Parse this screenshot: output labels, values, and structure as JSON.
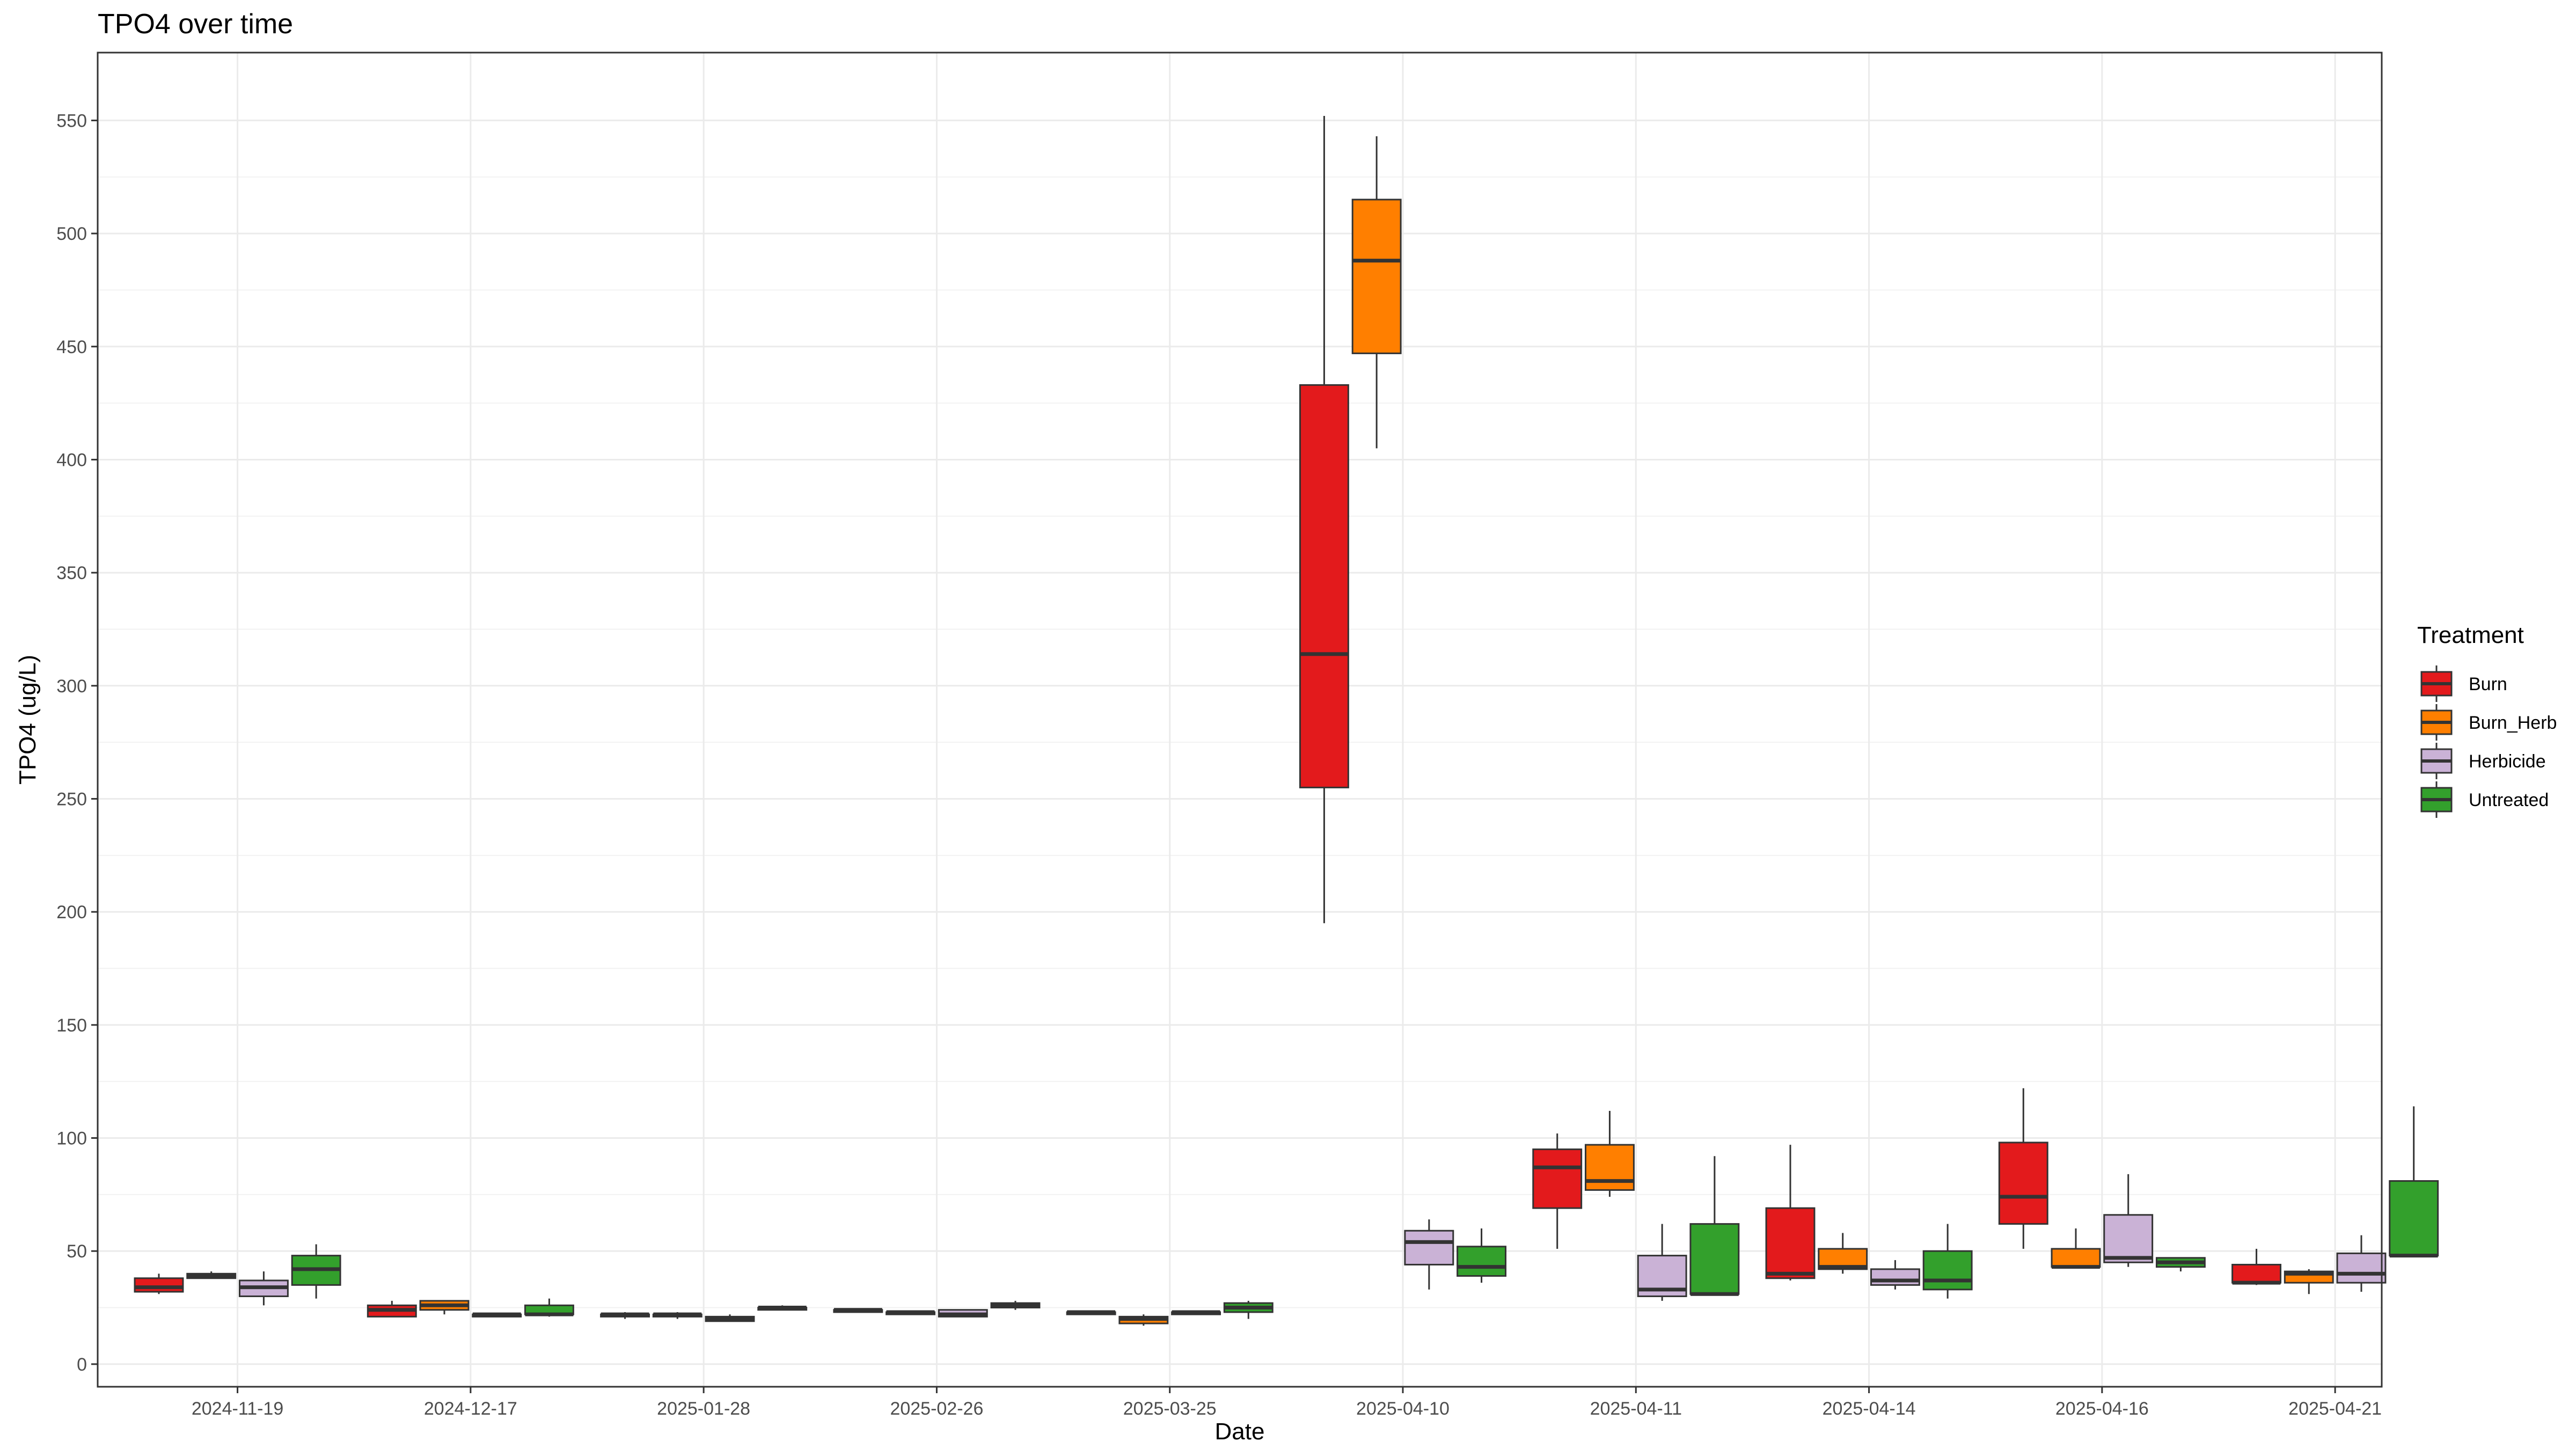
{
  "chart_data": {
    "type": "boxplot",
    "title": "TPO4 over time",
    "xlabel": "Date",
    "ylabel": "TPO4 (ug/L)",
    "ylim": [
      -10,
      580
    ],
    "yticks": [
      0,
      50,
      100,
      150,
      200,
      250,
      300,
      350,
      400,
      450,
      500,
      550
    ],
    "grid": true,
    "legend": {
      "title": "Treatment",
      "position": "right"
    },
    "categories": [
      "2024-11-19",
      "2024-12-17",
      "2025-01-28",
      "2025-02-26",
      "2025-03-25",
      "2025-04-10",
      "2025-04-11",
      "2025-04-14",
      "2025-04-16",
      "2025-04-21"
    ],
    "series": [
      {
        "name": "Burn",
        "color": "#e31a1c",
        "boxes": [
          {
            "min": 31,
            "q1": 32,
            "median": 34,
            "q3": 38,
            "max": 40
          },
          {
            "min": 21,
            "q1": 21,
            "median": 24,
            "q3": 26,
            "max": 28
          },
          {
            "min": 20,
            "q1": 21,
            "median": 22,
            "q3": 22,
            "max": 23
          },
          {
            "min": 23,
            "q1": 23,
            "median": 24,
            "q3": 24,
            "max": 24
          },
          {
            "min": 22,
            "q1": 22,
            "median": 23,
            "q3": 23,
            "max": 23
          },
          {
            "min": 195,
            "q1": 255,
            "median": 314,
            "q3": 433,
            "max": 552
          },
          {
            "min": 51,
            "q1": 69,
            "median": 87,
            "q3": 95,
            "max": 102
          },
          {
            "min": 37,
            "q1": 38,
            "median": 40,
            "q3": 69,
            "max": 97
          },
          {
            "min": 51,
            "q1": 62,
            "median": 74,
            "q3": 98,
            "max": 122
          },
          {
            "min": 35,
            "q1": 36,
            "median": 36,
            "q3": 44,
            "max": 51
          }
        ]
      },
      {
        "name": "Burn_Herb",
        "color": "#ff7f00",
        "boxes": [
          {
            "min": 38,
            "q1": 38,
            "median": 39,
            "q3": 40,
            "max": 41
          },
          {
            "min": 22,
            "q1": 24,
            "median": 26,
            "q3": 28,
            "max": 28
          },
          {
            "min": 20,
            "q1": 21,
            "median": 22,
            "q3": 22,
            "max": 23
          },
          {
            "min": 22,
            "q1": 22,
            "median": 23,
            "q3": 23,
            "max": 23
          },
          {
            "min": 17,
            "q1": 18,
            "median": 20,
            "q3": 21,
            "max": 22
          },
          {
            "min": 405,
            "q1": 447,
            "median": 488,
            "q3": 515,
            "max": 543
          },
          {
            "min": 74,
            "q1": 77,
            "median": 81,
            "q3": 97,
            "max": 112
          },
          {
            "min": 40,
            "q1": 42,
            "median": 43,
            "q3": 51,
            "max": 58
          },
          {
            "min": 43,
            "q1": 43,
            "median": 43,
            "q3": 51,
            "max": 60
          },
          {
            "min": 31,
            "q1": 36,
            "median": 40,
            "q3": 41,
            "max": 42
          }
        ]
      },
      {
        "name": "Herbicide",
        "color": "#cab2d6",
        "boxes": [
          {
            "min": 26,
            "q1": 30,
            "median": 34,
            "q3": 37,
            "max": 41
          },
          {
            "min": 21,
            "q1": 21,
            "median": 22,
            "q3": 22,
            "max": 22
          },
          {
            "min": 19,
            "q1": 19,
            "median": 20,
            "q3": 21,
            "max": 22
          },
          {
            "min": 21,
            "q1": 21,
            "median": 22,
            "q3": 24,
            "max": 24
          },
          {
            "min": 22,
            "q1": 22,
            "median": 23,
            "q3": 23,
            "max": 23
          },
          {
            "min": 33,
            "q1": 44,
            "median": 54,
            "q3": 59,
            "max": 64
          },
          {
            "min": 28,
            "q1": 30,
            "median": 33,
            "q3": 48,
            "max": 62
          },
          {
            "min": 33,
            "q1": 35,
            "median": 37,
            "q3": 42,
            "max": 46
          },
          {
            "min": 43,
            "q1": 45,
            "median": 47,
            "q3": 66,
            "max": 84
          },
          {
            "min": 32,
            "q1": 36,
            "median": 40,
            "q3": 49,
            "max": 57
          }
        ]
      },
      {
        "name": "Untreated",
        "color": "#33a02c",
        "boxes": [
          {
            "min": 29,
            "q1": 35,
            "median": 42,
            "q3": 48,
            "max": 53
          },
          {
            "min": 21,
            "q1": 22,
            "median": 22,
            "q3": 26,
            "max": 29
          },
          {
            "min": 24,
            "q1": 24,
            "median": 25,
            "q3": 25,
            "max": 26
          },
          {
            "min": 24,
            "q1": 25,
            "median": 26,
            "q3": 27,
            "max": 28
          },
          {
            "min": 20,
            "q1": 23,
            "median": 25,
            "q3": 27,
            "max": 28
          },
          {
            "min": 36,
            "q1": 39,
            "median": 43,
            "q3": 52,
            "max": 60
          },
          {
            "min": 31,
            "q1": 31,
            "median": 31,
            "q3": 62,
            "max": 92
          },
          {
            "min": 29,
            "q1": 33,
            "median": 37,
            "q3": 50,
            "max": 62
          },
          {
            "min": 41,
            "q1": 43,
            "median": 45,
            "q3": 47,
            "max": 47
          },
          {
            "min": 48,
            "q1": 48,
            "median": 48,
            "q3": 81,
            "max": 114
          }
        ]
      }
    ]
  }
}
